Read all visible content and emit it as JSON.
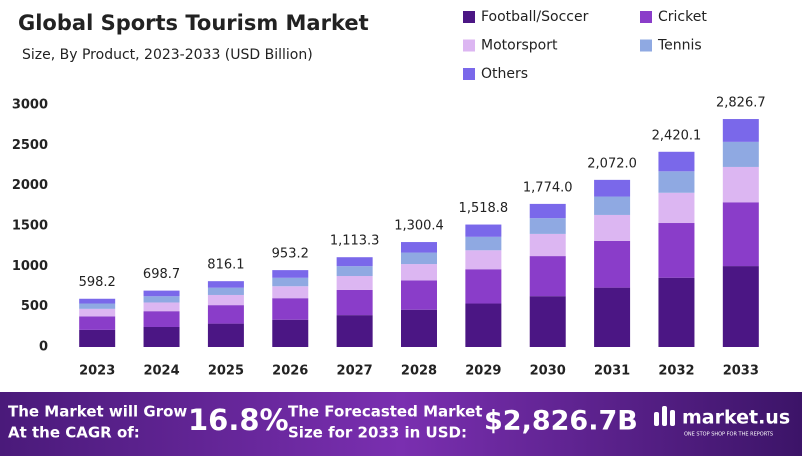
{
  "chart_data": {
    "type": "stacked-bar",
    "title": "Global Sports Tourism Market",
    "subtitle": "Size, By Product, 2023-2033 (USD Billion)",
    "categories": [
      "2023",
      "2024",
      "2025",
      "2026",
      "2027",
      "2028",
      "2029",
      "2030",
      "2031",
      "2032",
      "2033"
    ],
    "series": [
      {
        "name": "Football/Soccer",
        "color": "#4b1684",
        "values": [
          212,
          248,
          290,
          338,
          395,
          462,
          539,
          630,
          736,
          859,
          1003
        ]
      },
      {
        "name": "Cricket",
        "color": "#8a3dc9",
        "values": [
          168,
          196,
          229,
          267,
          312,
          364,
          425,
          497,
          580,
          678,
          791
        ]
      },
      {
        "name": "Motorsport",
        "color": "#dcb6f2",
        "values": [
          93,
          108,
          126,
          148,
          173,
          202,
          235,
          275,
          321,
          375,
          438
        ]
      },
      {
        "name": "Tennis",
        "color": "#8fa9e2",
        "values": [
          66,
          77,
          90,
          105,
          122,
          143,
          167,
          195,
          228,
          266,
          311
        ]
      },
      {
        "name": "Others",
        "color": "#7a68ea",
        "values": [
          59,
          70,
          81,
          95,
          111,
          130,
          152,
          177,
          207,
          242,
          283
        ]
      }
    ],
    "totals": [
      598.2,
      698.7,
      816.1,
      953.2,
      1113.3,
      1300.4,
      1518.8,
      1774.0,
      2072.0,
      2420.1,
      2826.7
    ],
    "total_labels": [
      "598.2",
      "698.7",
      "816.1",
      "953.2",
      "1,113.3",
      "1,300.4",
      "1,518.8",
      "1,774.0",
      "2,072.0",
      "2,420.1",
      "2,826.7"
    ],
    "ylim": [
      0,
      3000
    ],
    "yticks": [
      0,
      500,
      1000,
      1500,
      2000,
      2500,
      3000
    ],
    "grid": false
  },
  "footer": {
    "cagr_text": [
      "The Market will Grow",
      "At the CAGR of:"
    ],
    "cagr": "16.8%",
    "forecast_text": [
      "The Forecasted Market",
      "Size for 2033 in USD:"
    ],
    "forecast": "$2,826.7B",
    "brand": "market.us",
    "tagline": "ONE STOP SHOP FOR THE REPORTS"
  }
}
